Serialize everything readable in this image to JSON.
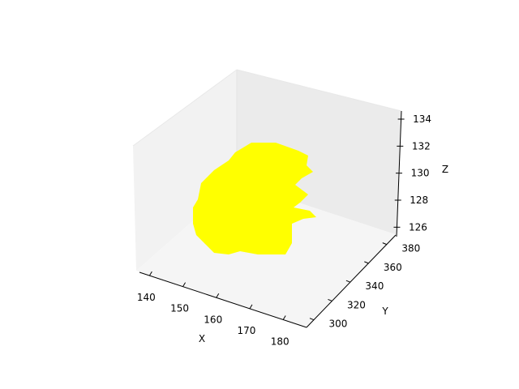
{
  "chart_data": {
    "type": "scatter3d",
    "xlabel": "X",
    "ylabel": "Y",
    "zlabel": "Z",
    "xticks": [
      "140",
      "150",
      "160",
      "170",
      "180"
    ],
    "yticks": [
      "300",
      "320",
      "340",
      "360",
      "380"
    ],
    "zticks": [
      "126",
      "128",
      "130",
      "132",
      "134"
    ],
    "xlim": [
      137,
      187
    ],
    "ylim": [
      292,
      390
    ],
    "zlim": [
      125.3,
      134.6
    ],
    "point_color": "#ffff00",
    "pane_colors": [
      "#f2f2f2",
      "#ebebeb",
      "#f7f7f7"
    ],
    "grid": false
  }
}
